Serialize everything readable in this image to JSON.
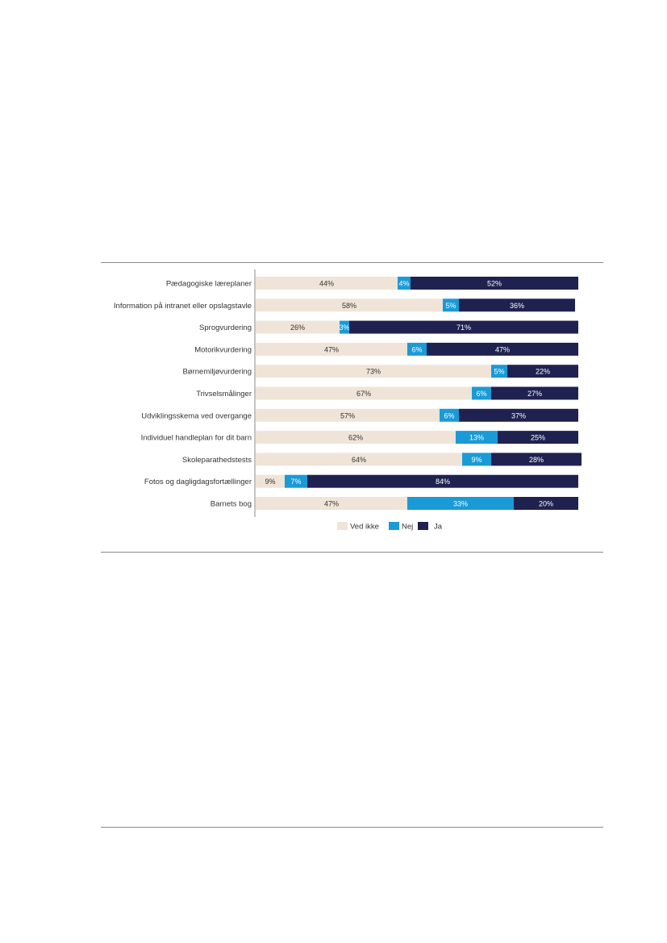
{
  "chart_data": {
    "type": "bar",
    "orientation": "horizontal",
    "stacked": true,
    "categories": [
      "Pædagogiske læreplaner",
      "Information på intranet eller opslagstavle",
      "Sprogvurdering",
      "Motorikvurdering",
      "Børnemiljøvurdering",
      "Trivselsmålinger",
      "Udviklingsskema ved overgange",
      "Individuel handleplan for dit barn",
      "Skoleparathedstests",
      "Fotos og dagligdagsfortællinger",
      "Barnets bog"
    ],
    "series": [
      {
        "name": "Ved ikke",
        "color": "#efe4d7",
        "textColor": "#333333",
        "values": [
          44,
          58,
          26,
          47,
          73,
          67,
          57,
          62,
          64,
          9,
          47
        ]
      },
      {
        "name": "Nej",
        "color": "#1a9ad6",
        "textColor": "#ffffff",
        "values": [
          4,
          5,
          3,
          6,
          5,
          6,
          6,
          13,
          9,
          7,
          33
        ]
      },
      {
        "name": "Ja",
        "color": "#1f2150",
        "textColor": "#ffffff",
        "values": [
          52,
          36,
          71,
          47,
          22,
          27,
          37,
          25,
          28,
          84,
          20
        ]
      }
    ],
    "labels": [
      [
        "44%",
        "4%",
        "52%"
      ],
      [
        "58%",
        "5%",
        "36%"
      ],
      [
        "26%",
        "3%",
        "71%"
      ],
      [
        "47%",
        "6%",
        "47%"
      ],
      [
        "73%",
        "5%",
        "22%"
      ],
      [
        "67%",
        "6%",
        "27%"
      ],
      [
        "57%",
        "6%",
        "37%"
      ],
      [
        "62%",
        "13%",
        "25%"
      ],
      [
        "64%",
        "9%",
        "28%"
      ],
      [
        "9%",
        "7%",
        "84%"
      ],
      [
        "47%",
        "33%",
        "20%"
      ]
    ],
    "xlim": [
      0,
      100
    ],
    "legend_position": "bottom-center",
    "title": "",
    "xlabel": "",
    "ylabel": ""
  }
}
